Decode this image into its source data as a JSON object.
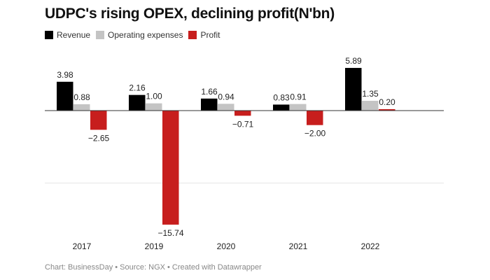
{
  "chart_data": {
    "type": "bar",
    "title": "UDPC's rising OPEX, declining profit(N'bn)",
    "categories": [
      "2017",
      "2019",
      "2020",
      "2021",
      "2022"
    ],
    "series": [
      {
        "name": "Revenue",
        "color": "#000000",
        "values": [
          3.98,
          2.16,
          1.66,
          0.83,
          5.89
        ],
        "labels": [
          "3.98",
          "2.16",
          "1.66",
          "0.83",
          "5.89"
        ]
      },
      {
        "name": "Operating expenses",
        "color": "#c4c4c4",
        "values": [
          0.88,
          1.0,
          0.94,
          0.91,
          1.35
        ],
        "labels": [
          "0.88",
          "1.00",
          "0.94",
          "0.91",
          "1.35"
        ]
      },
      {
        "name": "Profit",
        "color": "#c71e1d",
        "values": [
          -2.65,
          -15.74,
          -0.71,
          -2.0,
          0.2
        ],
        "labels": [
          "−2.65",
          "−15.74",
          "−0.71",
          "−2.00",
          "0.20"
        ]
      }
    ],
    "ylim": [
      -15.74,
      5.89
    ],
    "gridlines": [
      0,
      -10
    ],
    "legend": "top-left",
    "footer": "Chart: BusinessDay • Source: NGX • Created with Datawrapper"
  }
}
